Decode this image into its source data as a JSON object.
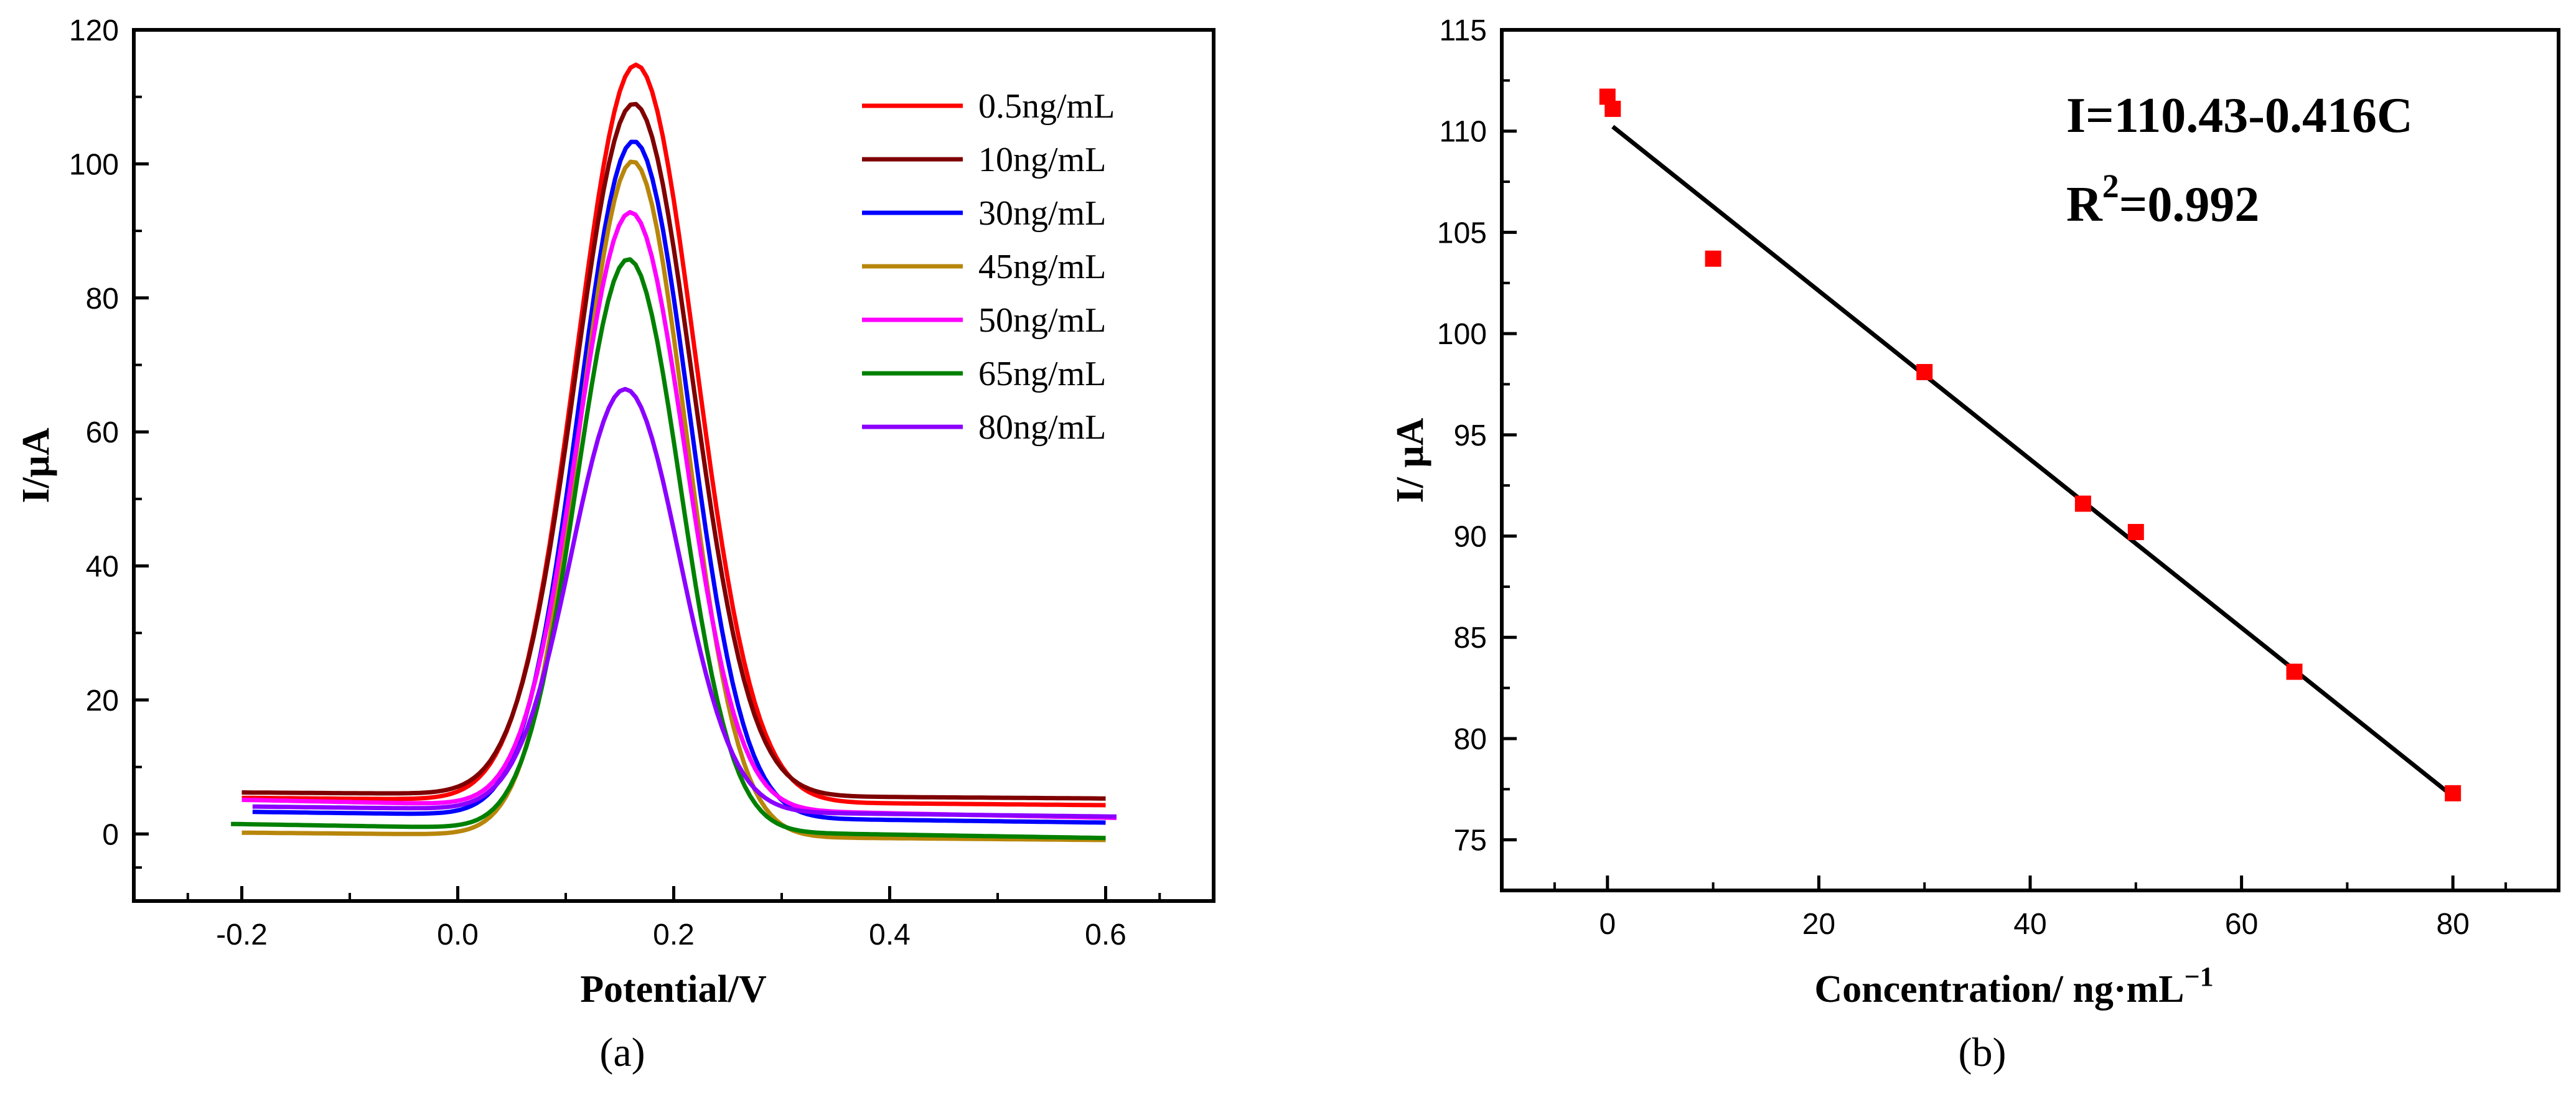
{
  "panels": {
    "a": "(a)",
    "b": "(b)"
  },
  "chart_data": [
    {
      "type": "line",
      "panel": "a",
      "xlabel": "Potential/V",
      "ylabel": "I/μA",
      "xlim": [
        -0.3,
        0.7
      ],
      "ylim": [
        -10,
        120
      ],
      "xticks": [
        -0.2,
        0.0,
        0.2,
        0.4,
        0.6
      ],
      "xtick_labels": [
        "-0.2",
        "0.0",
        "0.2",
        "0.4",
        "0.6"
      ],
      "yticks": [
        0,
        20,
        40,
        60,
        80,
        100,
        120
      ],
      "ytick_labels": [
        "0",
        "20",
        "40",
        "60",
        "80",
        "100",
        "120"
      ],
      "legend_position": "top-right",
      "series": [
        {
          "name": "0.5ng/mL",
          "color": "#ff0000",
          "start": -0.2,
          "end": 0.6,
          "peak_x": 0.165,
          "peak": 114.8,
          "sigma": 0.055,
          "base_left": 5.4,
          "base_right": 4.3
        },
        {
          "name": "10ng/mL",
          "color": "#7f0000",
          "start": -0.2,
          "end": 0.6,
          "peak_x": 0.163,
          "peak": 109.0,
          "sigma": 0.054,
          "base_left": 6.2,
          "base_right": 5.3
        },
        {
          "name": "30ng/mL",
          "color": "#0000ff",
          "start": -0.19,
          "end": 0.6,
          "peak_x": 0.163,
          "peak": 103.4,
          "sigma": 0.051,
          "base_left": 3.3,
          "base_right": 1.7
        },
        {
          "name": "45ng/mL",
          "color": "#b8860b",
          "start": -0.2,
          "end": 0.6,
          "peak_x": 0.162,
          "peak": 100.4,
          "sigma": 0.049,
          "base_left": 0.2,
          "base_right": -0.9
        },
        {
          "name": "50ng/mL",
          "color": "#ff00ff",
          "start": -0.2,
          "end": 0.61,
          "peak_x": 0.16,
          "peak": 92.8,
          "sigma": 0.05,
          "base_left": 5.1,
          "base_right": 2.4
        },
        {
          "name": "65ng/mL",
          "color": "#008000",
          "start": -0.21,
          "end": 0.6,
          "peak_x": 0.158,
          "peak": 85.8,
          "sigma": 0.048,
          "base_left": 1.5,
          "base_right": -0.6
        },
        {
          "name": "80ng/mL",
          "color": "#8b00ff",
          "start": -0.19,
          "end": 0.61,
          "peak_x": 0.155,
          "peak": 66.4,
          "sigma": 0.05,
          "base_left": 4.1,
          "base_right": 2.6
        }
      ]
    },
    {
      "type": "scatter",
      "panel": "b",
      "xlabel": "Concentration/ ng·mL",
      "xlabel_sup": "−1",
      "ylabel": "I/ μA",
      "xlim": [
        -10,
        90
      ],
      "ylim": [
        72.5,
        115
      ],
      "xticks": [
        0,
        20,
        40,
        60,
        80
      ],
      "xtick_labels": [
        "0",
        "20",
        "40",
        "60",
        "80"
      ],
      "yticks": [
        75,
        80,
        85,
        90,
        95,
        100,
        105,
        110,
        115
      ],
      "ytick_labels": [
        "75",
        "80",
        "85",
        "90",
        "95",
        "100",
        "105",
        "110",
        "115"
      ],
      "points": [
        {
          "x": 0,
          "y": 111.7
        },
        {
          "x": 0.5,
          "y": 111.1
        },
        {
          "x": 10,
          "y": 103.7
        },
        {
          "x": 30,
          "y": 98.1
        },
        {
          "x": 45,
          "y": 91.6
        },
        {
          "x": 50,
          "y": 90.2
        },
        {
          "x": 65,
          "y": 83.3
        },
        {
          "x": 80,
          "y": 77.3
        }
      ],
      "point_color": "#ff0000",
      "fit": {
        "intercept": 110.43,
        "slope": -0.416,
        "x_from": 0.5,
        "x_to": 80,
        "color": "#000000"
      },
      "equation": "I=110.43-0.416C",
      "r2_prefix": "R",
      "r2_sup": "2",
      "r2_value": "=0.992"
    }
  ]
}
